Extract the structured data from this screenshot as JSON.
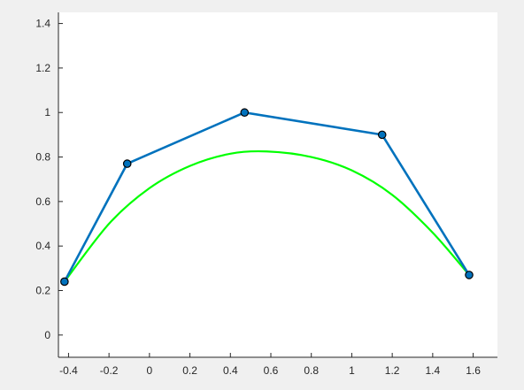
{
  "chart_data": {
    "type": "line",
    "title": "",
    "xlabel": "",
    "ylabel": "",
    "xlim": [
      -0.45,
      1.72
    ],
    "ylim": [
      -0.1,
      1.45
    ],
    "grid": false,
    "x_ticks": [
      -0.4,
      -0.2,
      0,
      0.2,
      0.4,
      0.6,
      0.8,
      1,
      1.2,
      1.4,
      1.6
    ],
    "x_tick_labels": [
      "-0.4",
      "-0.2",
      "0",
      "0.2",
      "0.4",
      "0.6",
      "0.8",
      "1",
      "1.2",
      "1.4",
      "1.6"
    ],
    "y_ticks": [
      0,
      0.2,
      0.4,
      0.6,
      0.8,
      1,
      1.2,
      1.4
    ],
    "y_tick_labels": [
      "0",
      "0.2",
      "0.4",
      "0.6",
      "0.8",
      "1",
      "1.2",
      "1.4"
    ],
    "series": [
      {
        "kind": "control-polygon",
        "color": "#0072bd",
        "marker": "circle",
        "marker_fill": "#0072bd",
        "marker_edge": "#000000",
        "x": [
          -0.42,
          -0.11,
          0.47,
          1.15,
          1.58
        ],
        "y": [
          0.24,
          0.77,
          1.0,
          0.9,
          0.27
        ]
      },
      {
        "kind": "bezier-curve",
        "color": "#00ff00",
        "x": [
          -0.42,
          -0.2,
          0.0,
          0.2,
          0.4,
          0.58,
          0.8,
          1.0,
          1.2,
          1.4,
          1.58
        ],
        "y": [
          0.24,
          0.5,
          0.66,
          0.76,
          0.815,
          0.825,
          0.8,
          0.74,
          0.63,
          0.46,
          0.27
        ]
      }
    ]
  }
}
